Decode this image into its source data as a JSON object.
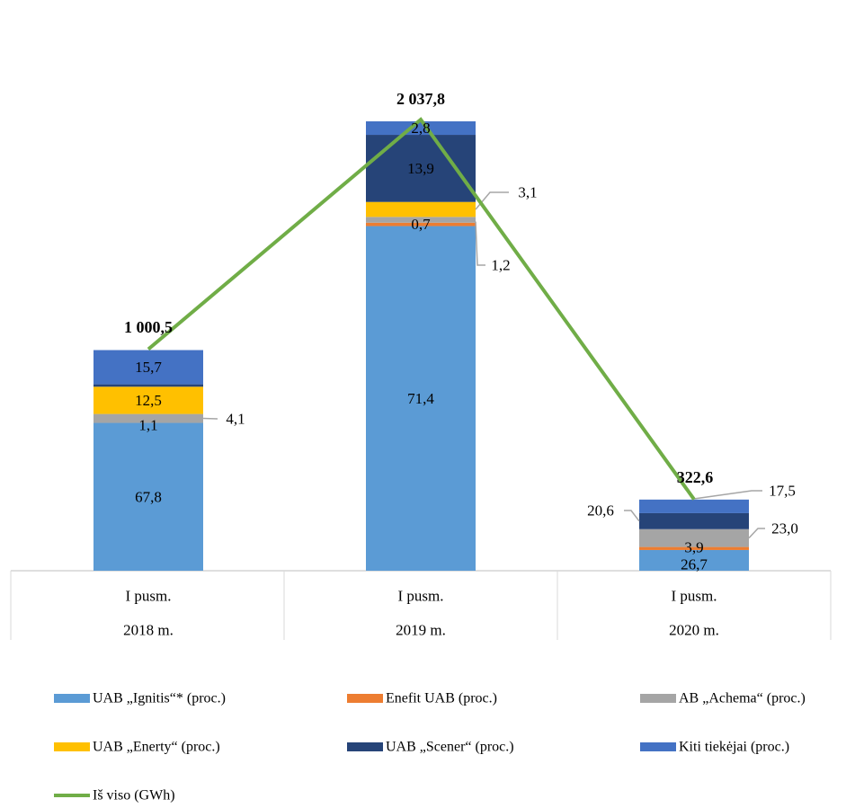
{
  "chart_data": {
    "type": "bar",
    "subtype": "stacked-bar-with-line",
    "categories": [
      {
        "line1": "I pusm.",
        "line2": "2018 m."
      },
      {
        "line1": "I pusm.",
        "line2": "2019 m."
      },
      {
        "line1": "I pusm.",
        "line2": "2020 m."
      }
    ],
    "series": [
      {
        "name": "UAB  „Ignitis“*  (proc.)",
        "color": "#5B9BD5",
        "values": [
          67.8,
          71.4,
          26.7
        ],
        "labels": [
          "67,8",
          "71,4",
          "26,7"
        ]
      },
      {
        "name": "Enefit UAB (proc.)",
        "color": "#ED7D31",
        "values": [
          0,
          0.7,
          3.9
        ],
        "labels": [
          "",
          "0,7",
          "3,9"
        ]
      },
      {
        "name": "AB „Achema“ (proc.)",
        "color": "#A5A5A5",
        "values": [
          4.1,
          1.2,
          23.0
        ],
        "labels": [
          "4,1",
          "1,2",
          "23,0"
        ]
      },
      {
        "name": "UAB „Enerty“ (proc.)",
        "color": "#FFC000",
        "values": [
          12.5,
          3.1,
          0
        ],
        "labels": [
          "12,5",
          "3,1",
          ""
        ]
      },
      {
        "name": "UAB „Scener“ (proc.)",
        "color": "#264478",
        "values": [
          1.1,
          13.9,
          20.6
        ],
        "labels": [
          "1,1",
          "13,9",
          "20,6"
        ]
      },
      {
        "name": "Kiti tiekėjai (proc.)",
        "color": "#4472C4",
        "values": [
          15.7,
          2.8,
          17.5
        ],
        "labels": [
          "15,7",
          "2,8",
          "17,5"
        ]
      }
    ],
    "line": {
      "name": "Iš viso (GWh)",
      "color": "#70AD47",
      "values": [
        1000.5,
        2037.8,
        322.6
      ],
      "labels": [
        "1 000,5",
        "2 037,8",
        "322,6"
      ]
    },
    "legend_position": "bottom",
    "grid": false
  }
}
